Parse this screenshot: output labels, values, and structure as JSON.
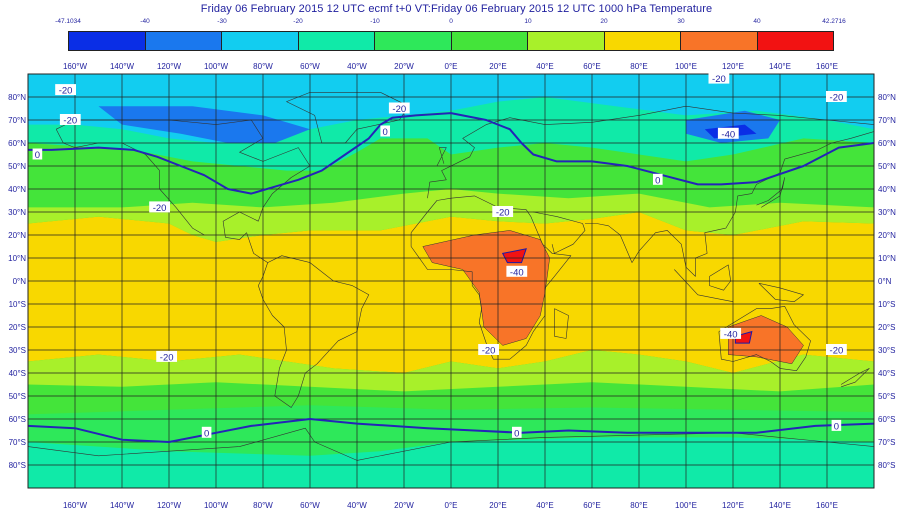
{
  "title": "Friday 06 February 2015 12 UTC ecmf t+0 VT:Friday 06 February 2015 12 UTC 1000 hPa  Temperature",
  "legend": {
    "min_label": "-47.1034",
    "max_label": "42.2716",
    "boundaries": [
      "-40",
      "-30",
      "-20",
      "-10",
      "0",
      "10",
      "20",
      "30",
      "40"
    ],
    "colors": [
      "#0a2ee6",
      "#1a78ee",
      "#12cdf0",
      "#10eaa8",
      "#2ee85a",
      "#44e43a",
      "#a8f02a",
      "#f8d800",
      "#f87428",
      "#f21212"
    ]
  },
  "axes": {
    "lon_labels": [
      "160°W",
      "140°W",
      "120°W",
      "100°W",
      "80°W",
      "60°W",
      "40°W",
      "20°W",
      "0°E",
      "20°E",
      "40°E",
      "60°E",
      "80°E",
      "100°E",
      "120°E",
      "140°E",
      "160°E"
    ],
    "lat_labels": [
      "80°N",
      "70°N",
      "60°N",
      "50°N",
      "40°N",
      "30°N",
      "20°N",
      "10°N",
      "0°N",
      "10°S",
      "20°S",
      "30°S",
      "40°S",
      "50°S",
      "60°S",
      "70°S",
      "80°S"
    ]
  },
  "contour_labels": [
    {
      "text": "-20",
      "lon": -164,
      "lat": 83
    },
    {
      "text": "-20",
      "lon": -162,
      "lat": 70
    },
    {
      "text": "-20",
      "lon": -22,
      "lat": 75
    },
    {
      "text": "-20",
      "lon": 114,
      "lat": 88
    },
    {
      "text": "-20",
      "lon": 164,
      "lat": 80
    },
    {
      "text": "-40",
      "lon": 118,
      "lat": 64
    },
    {
      "text": "0",
      "lon": -176,
      "lat": 55
    },
    {
      "text": "0",
      "lon": -28,
      "lat": 65
    },
    {
      "text": "0",
      "lon": 88,
      "lat": 44
    },
    {
      "text": "0",
      "lon": -104,
      "lat": -66
    },
    {
      "text": "0",
      "lon": 28,
      "lat": -66
    },
    {
      "text": "0",
      "lon": 164,
      "lat": -63
    },
    {
      "text": "-20",
      "lon": 22,
      "lat": 30
    },
    {
      "text": "-20",
      "lon": -124,
      "lat": 32
    },
    {
      "text": "-20",
      "lon": 16,
      "lat": -30
    },
    {
      "text": "-20",
      "lon": -121,
      "lat": -33
    },
    {
      "text": "-20",
      "lon": 164,
      "lat": -30
    },
    {
      "text": "-40",
      "lon": 28,
      "lat": 4
    },
    {
      "text": "-40",
      "lon": 119,
      "lat": -23
    }
  ]
}
